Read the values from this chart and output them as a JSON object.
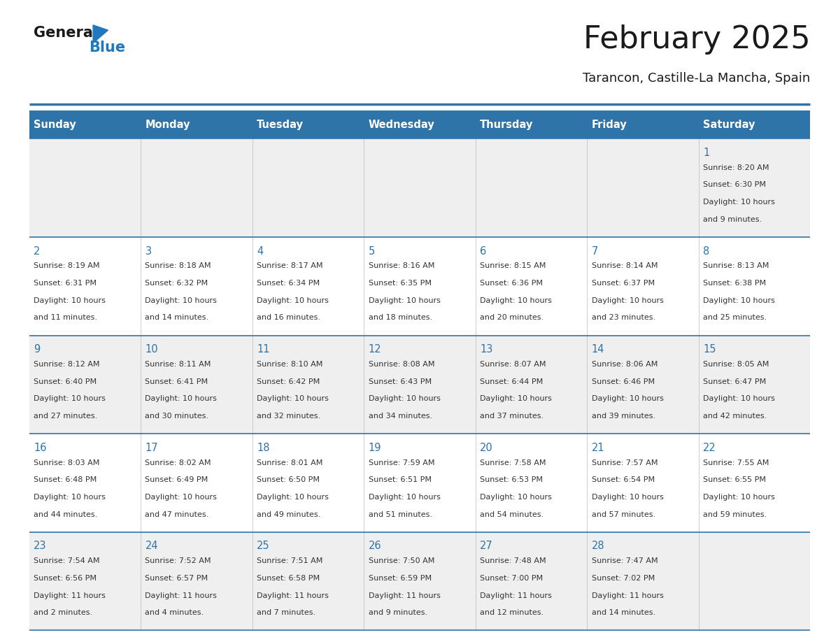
{
  "title": "February 2025",
  "subtitle": "Tarancon, Castille-La Mancha, Spain",
  "header_bg": "#2E74A8",
  "header_text": "#FFFFFF",
  "day_headers": [
    "Sunday",
    "Monday",
    "Tuesday",
    "Wednesday",
    "Thursday",
    "Friday",
    "Saturday"
  ],
  "cell_bg_even": "#EFEFEF",
  "cell_bg_odd": "#FFFFFF",
  "cell_text": "#333333",
  "day_number_color": "#2E74A8",
  "separator_color": "#2E74A8",
  "logo_general_color": "#1a1a1a",
  "logo_blue_color": "#2178BC",
  "weeks": [
    [
      {
        "day": null
      },
      {
        "day": null
      },
      {
        "day": null
      },
      {
        "day": null
      },
      {
        "day": null
      },
      {
        "day": null
      },
      {
        "day": 1,
        "sunrise": "8:20 AM",
        "sunset": "6:30 PM",
        "daylight": "10 hours",
        "daylight2": "and 9 minutes."
      }
    ],
    [
      {
        "day": 2,
        "sunrise": "8:19 AM",
        "sunset": "6:31 PM",
        "daylight": "10 hours",
        "daylight2": "and 11 minutes."
      },
      {
        "day": 3,
        "sunrise": "8:18 AM",
        "sunset": "6:32 PM",
        "daylight": "10 hours",
        "daylight2": "and 14 minutes."
      },
      {
        "day": 4,
        "sunrise": "8:17 AM",
        "sunset": "6:34 PM",
        "daylight": "10 hours",
        "daylight2": "and 16 minutes."
      },
      {
        "day": 5,
        "sunrise": "8:16 AM",
        "sunset": "6:35 PM",
        "daylight": "10 hours",
        "daylight2": "and 18 minutes."
      },
      {
        "day": 6,
        "sunrise": "8:15 AM",
        "sunset": "6:36 PM",
        "daylight": "10 hours",
        "daylight2": "and 20 minutes."
      },
      {
        "day": 7,
        "sunrise": "8:14 AM",
        "sunset": "6:37 PM",
        "daylight": "10 hours",
        "daylight2": "and 23 minutes."
      },
      {
        "day": 8,
        "sunrise": "8:13 AM",
        "sunset": "6:38 PM",
        "daylight": "10 hours",
        "daylight2": "and 25 minutes."
      }
    ],
    [
      {
        "day": 9,
        "sunrise": "8:12 AM",
        "sunset": "6:40 PM",
        "daylight": "10 hours",
        "daylight2": "and 27 minutes."
      },
      {
        "day": 10,
        "sunrise": "8:11 AM",
        "sunset": "6:41 PM",
        "daylight": "10 hours",
        "daylight2": "and 30 minutes."
      },
      {
        "day": 11,
        "sunrise": "8:10 AM",
        "sunset": "6:42 PM",
        "daylight": "10 hours",
        "daylight2": "and 32 minutes."
      },
      {
        "day": 12,
        "sunrise": "8:08 AM",
        "sunset": "6:43 PM",
        "daylight": "10 hours",
        "daylight2": "and 34 minutes."
      },
      {
        "day": 13,
        "sunrise": "8:07 AM",
        "sunset": "6:44 PM",
        "daylight": "10 hours",
        "daylight2": "and 37 minutes."
      },
      {
        "day": 14,
        "sunrise": "8:06 AM",
        "sunset": "6:46 PM",
        "daylight": "10 hours",
        "daylight2": "and 39 minutes."
      },
      {
        "day": 15,
        "sunrise": "8:05 AM",
        "sunset": "6:47 PM",
        "daylight": "10 hours",
        "daylight2": "and 42 minutes."
      }
    ],
    [
      {
        "day": 16,
        "sunrise": "8:03 AM",
        "sunset": "6:48 PM",
        "daylight": "10 hours",
        "daylight2": "and 44 minutes."
      },
      {
        "day": 17,
        "sunrise": "8:02 AM",
        "sunset": "6:49 PM",
        "daylight": "10 hours",
        "daylight2": "and 47 minutes."
      },
      {
        "day": 18,
        "sunrise": "8:01 AM",
        "sunset": "6:50 PM",
        "daylight": "10 hours",
        "daylight2": "and 49 minutes."
      },
      {
        "day": 19,
        "sunrise": "7:59 AM",
        "sunset": "6:51 PM",
        "daylight": "10 hours",
        "daylight2": "and 51 minutes."
      },
      {
        "day": 20,
        "sunrise": "7:58 AM",
        "sunset": "6:53 PM",
        "daylight": "10 hours",
        "daylight2": "and 54 minutes."
      },
      {
        "day": 21,
        "sunrise": "7:57 AM",
        "sunset": "6:54 PM",
        "daylight": "10 hours",
        "daylight2": "and 57 minutes."
      },
      {
        "day": 22,
        "sunrise": "7:55 AM",
        "sunset": "6:55 PM",
        "daylight": "10 hours",
        "daylight2": "and 59 minutes."
      }
    ],
    [
      {
        "day": 23,
        "sunrise": "7:54 AM",
        "sunset": "6:56 PM",
        "daylight": "11 hours",
        "daylight2": "and 2 minutes."
      },
      {
        "day": 24,
        "sunrise": "7:52 AM",
        "sunset": "6:57 PM",
        "daylight": "11 hours",
        "daylight2": "and 4 minutes."
      },
      {
        "day": 25,
        "sunrise": "7:51 AM",
        "sunset": "6:58 PM",
        "daylight": "11 hours",
        "daylight2": "and 7 minutes."
      },
      {
        "day": 26,
        "sunrise": "7:50 AM",
        "sunset": "6:59 PM",
        "daylight": "11 hours",
        "daylight2": "and 9 minutes."
      },
      {
        "day": 27,
        "sunrise": "7:48 AM",
        "sunset": "7:00 PM",
        "daylight": "11 hours",
        "daylight2": "and 12 minutes."
      },
      {
        "day": 28,
        "sunrise": "7:47 AM",
        "sunset": "7:02 PM",
        "daylight": "11 hours",
        "daylight2": "and 14 minutes."
      },
      {
        "day": null
      }
    ]
  ],
  "figsize": [
    11.88,
    9.18
  ],
  "dpi": 100
}
